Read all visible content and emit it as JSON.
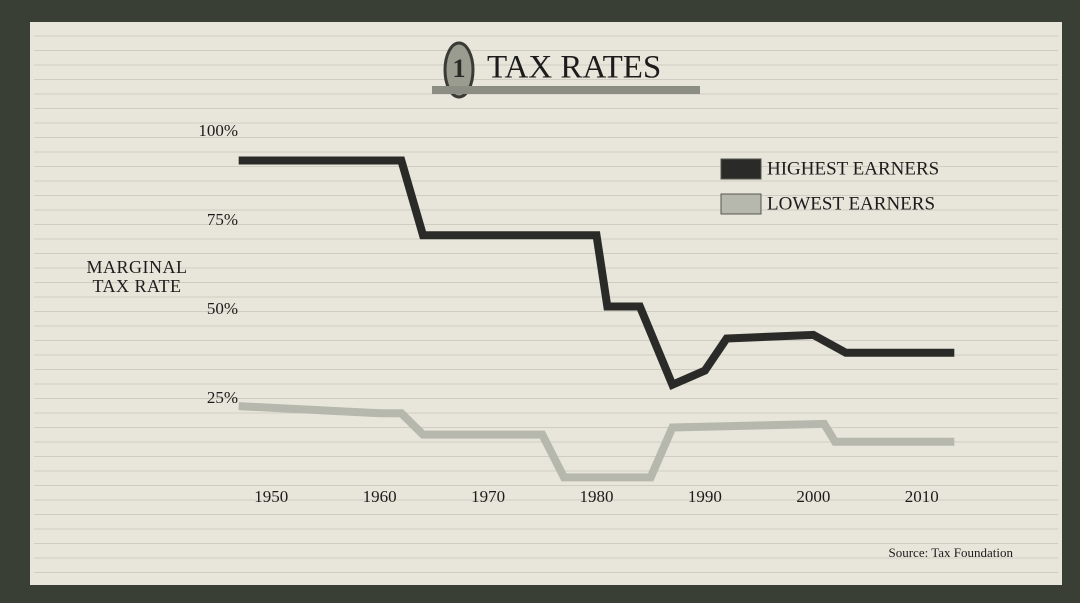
{
  "chart_data": {
    "type": "line",
    "title": "TAX RATES",
    "y_label": "MARGINAL TAX RATE",
    "source": "Source: Tax Foundation",
    "xlim": [
      1945,
      2015
    ],
    "xticks": [
      1950,
      1960,
      1970,
      1980,
      1990,
      2000,
      2010
    ],
    "ylim": [
      0,
      100
    ],
    "yticks": [
      {
        "value": 25,
        "label": "25%"
      },
      {
        "value": 50,
        "label": "50%"
      },
      {
        "value": 75,
        "label": "75%"
      },
      {
        "value": 100,
        "label": "100%"
      }
    ],
    "grid": false,
    "series": [
      {
        "name": "HIGHEST EARNERS",
        "color": "#2a2a28",
        "x": [
          1947,
          1962,
          1964,
          1980,
          1981,
          1984,
          1987,
          1990,
          1992,
          2000,
          2003,
          2013
        ],
        "values": [
          92,
          92,
          71,
          71,
          51,
          51,
          29,
          33,
          42,
          43,
          38,
          38
        ]
      },
      {
        "name": "LOWEST EARNERS",
        "color": "#b6b8ad",
        "x": [
          1947,
          1960,
          1962,
          1964,
          1975,
          1977,
          1985,
          1987,
          2001,
          2002,
          2013
        ],
        "values": [
          23,
          21,
          21,
          15,
          15,
          3,
          3,
          17,
          18,
          13,
          13
        ]
      }
    ]
  }
}
